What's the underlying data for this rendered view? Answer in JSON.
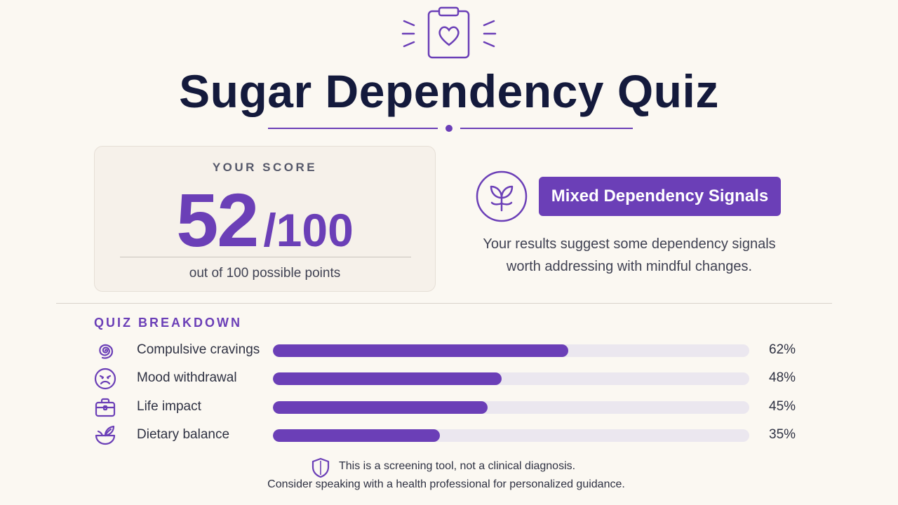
{
  "header": {
    "title": "Sugar Dependency Quiz",
    "icon": "clipboard-heart-icon"
  },
  "score": {
    "label": "YOUR SCORE",
    "value": "52",
    "max": "/100",
    "subtext": "out of 100 possible points"
  },
  "result": {
    "icon": "leaf-sprout-icon",
    "badge": "Mixed Dependency Signals",
    "description": "Your results suggest some dependency signals worth addressing with mindful changes."
  },
  "breakdown": {
    "title": "QUIZ BREAKDOWN",
    "items": [
      {
        "label": "Compulsive cravings",
        "percent_text": "62%",
        "percent": 62,
        "icon": "spiral-icon"
      },
      {
        "label": "Mood withdrawal",
        "percent_text": "48%",
        "percent": 48,
        "icon": "sad-face-icon"
      },
      {
        "label": "Life impact",
        "percent_text": "45%",
        "percent": 45,
        "icon": "briefcase-icon"
      },
      {
        "label": "Dietary balance",
        "percent_text": "35%",
        "percent": 35,
        "icon": "bowl-leaf-icon"
      }
    ]
  },
  "disclaimer": {
    "icon": "shield-icon",
    "line1": "This is a screening tool, not a clinical diagnosis.",
    "line2": "Consider speaking with a health professional for personalized guidance."
  },
  "colors": {
    "accent": "#6b3fb7",
    "background": "#fbf8f2",
    "title": "#141a3c",
    "track": "#ebe7ef"
  }
}
